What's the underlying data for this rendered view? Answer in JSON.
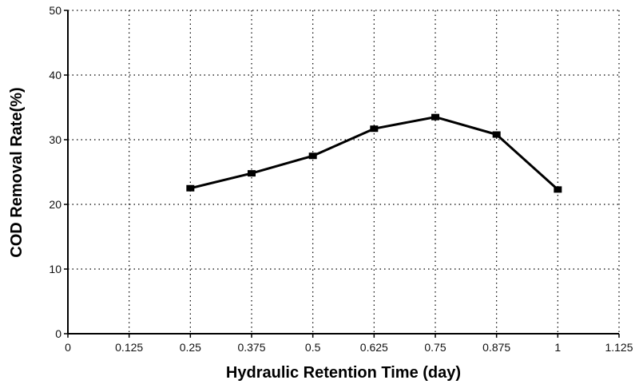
{
  "chart_data": {
    "type": "line",
    "title": "",
    "xlabel": "Hydraulic Retention Time (day)",
    "ylabel": "COD Removal Rate(%)",
    "xlim": [
      0,
      1.125
    ],
    "ylim": [
      0,
      50
    ],
    "x_ticks": [
      "0",
      "0.125",
      "0.25",
      "0.375",
      "0.5",
      "0.625",
      "0.75",
      "0.875",
      "1",
      "1.125"
    ],
    "y_ticks": [
      "0",
      "10",
      "20",
      "30",
      "40",
      "50"
    ],
    "grid": true,
    "grid_style": "dotted",
    "legend": "none",
    "series": [
      {
        "color": "#000000",
        "marker": "square",
        "x": [
          0.25,
          0.375,
          0.5,
          0.625,
          0.75,
          0.875,
          1.0
        ],
        "y": [
          22.5,
          24.8,
          27.5,
          31.7,
          33.5,
          30.8,
          22.3
        ]
      }
    ]
  }
}
